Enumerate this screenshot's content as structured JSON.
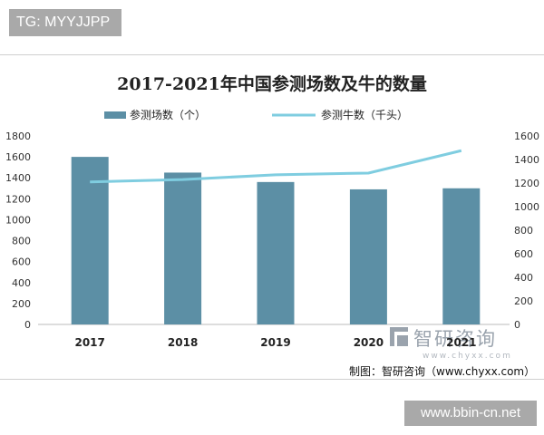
{
  "watermark_top": "TG: MYYJJPP",
  "watermark_bottom": "www.bbin-cn.net",
  "brand": {
    "cn": "智研咨询",
    "url": "www.chyxx.com"
  },
  "credit": "制图：智研咨询（www.chyxx.com）",
  "colors": {
    "bar": "#5c8fa5",
    "line": "#7fcde0",
    "text": "#222222"
  },
  "chart_data": {
    "type": "bar",
    "title": "2017-2021年中国参测场数及牛的数量",
    "categories": [
      "2017",
      "2018",
      "2019",
      "2020",
      "2021"
    ],
    "series": [
      {
        "name": "参测场数（个）",
        "type": "bar",
        "axis": "left",
        "values": [
          1600,
          1450,
          1360,
          1290,
          1300
        ]
      },
      {
        "name": "参测牛数（千头）",
        "type": "line",
        "axis": "right",
        "values": [
          1210,
          1230,
          1270,
          1285,
          1475
        ]
      }
    ],
    "y_left": {
      "lim": [
        0,
        1800
      ],
      "ticks": [
        "0",
        "200",
        "400",
        "600",
        "800",
        "1000",
        "1200",
        "1400",
        "1600",
        "1800"
      ]
    },
    "y_right": {
      "lim": [
        0,
        1600
      ],
      "ticks": [
        "0",
        "200",
        "400",
        "600",
        "800",
        "1000",
        "1200",
        "1400",
        "1600"
      ]
    },
    "legend_position": "top",
    "grid": false
  }
}
